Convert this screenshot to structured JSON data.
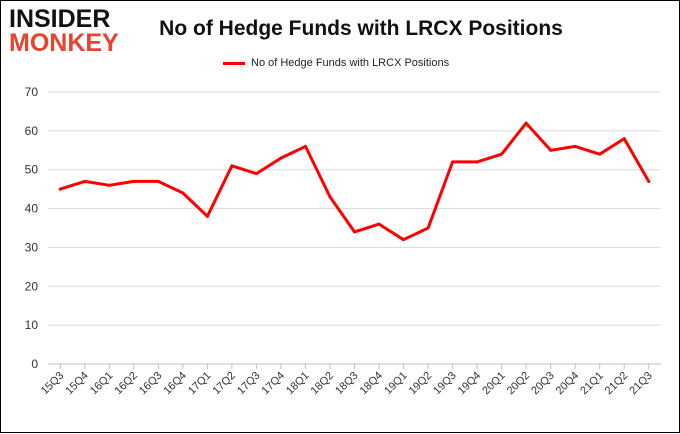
{
  "logo": {
    "line1": "INSIDER",
    "line2": "MONKEY"
  },
  "colors": {
    "line": "#ff0000",
    "grid": "#d9d9d9",
    "axis": "#bfbfbf",
    "text": "#333333"
  },
  "chart_data": {
    "type": "line",
    "title": "No of Hedge Funds with LRCX Positions",
    "xlabel": "",
    "ylabel": "",
    "ylim": [
      0,
      70
    ],
    "yticks": [
      0,
      10,
      20,
      30,
      40,
      50,
      60,
      70
    ],
    "grid": true,
    "legend_position": "top",
    "categories": [
      "15Q3",
      "15Q4",
      "16Q1",
      "16Q2",
      "16Q3",
      "16Q4",
      "17Q1",
      "17Q2",
      "17Q3",
      "17Q4",
      "18Q1",
      "18Q2",
      "18Q3",
      "18Q4",
      "19Q1",
      "19Q2",
      "19Q3",
      "19Q4",
      "20Q1",
      "20Q2",
      "20Q3",
      "20Q4",
      "21Q1",
      "21Q2",
      "21Q3"
    ],
    "series": [
      {
        "name": "No of Hedge Funds with LRCX Positions",
        "values": [
          45,
          47,
          46,
          47,
          47,
          44,
          38,
          51,
          49,
          53,
          56,
          43,
          34,
          36,
          32,
          35,
          52,
          52,
          54,
          62,
          55,
          56,
          54,
          58,
          47
        ]
      }
    ]
  }
}
